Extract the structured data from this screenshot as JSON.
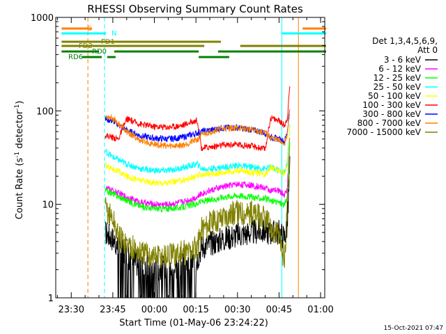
{
  "chart_data": {
    "type": "line",
    "title": "RHESSI Observing Summary Count Rates",
    "xlabel": "Start Time (01-May-06 23:24:22)",
    "ylabel": "Count Rate (s",
    "ylabel_sup1": "-1",
    "ylabel_mid": " detector",
    "ylabel_sup2": "-1",
    "ylabel_end": ")",
    "y_scale": "log",
    "ylim": [
      1,
      1000
    ],
    "xlim_minutes_from_2330": [
      -5.6,
      91.5
    ],
    "x_ticks": [
      {
        "label": "23:30",
        "minute": 0
      },
      {
        "label": "23:45",
        "minute": 15
      },
      {
        "label": "00:00",
        "minute": 30
      },
      {
        "label": "00:15",
        "minute": 45
      },
      {
        "label": "00:30",
        "minute": 60
      },
      {
        "label": "00:45",
        "minute": 75
      },
      {
        "label": "01:00",
        "minute": 90
      }
    ],
    "y_ticks": [
      {
        "label": "1",
        "value": 1
      },
      {
        "label": "10",
        "value": 10
      },
      {
        "label": "100",
        "value": 100
      },
      {
        "label": "1000",
        "value": 1000
      }
    ],
    "legend_header": [
      "Det 1,3,4,5,6,9,",
      "Att 0"
    ],
    "legend_placement": "right",
    "series": [
      {
        "name": "3 - 6 keV",
        "color": "#000000",
        "x": [
          12.3,
          15,
          20,
          25,
          30,
          35,
          40,
          45.5,
          47,
          50,
          55,
          60,
          65,
          70,
          72,
          75,
          77,
          78,
          79
        ],
        "y": [
          5,
          4.3,
          2.8,
          2.2,
          2.1,
          2.1,
          2.2,
          2.6,
          3.5,
          3.8,
          4.3,
          4.7,
          5,
          5.2,
          5,
          5,
          4.5,
          6,
          30
        ]
      },
      {
        "name": "6 - 12 keV",
        "color": "#ff00ff",
        "x": [
          12.3,
          15,
          20,
          25,
          30,
          35,
          40,
          45.5,
          47,
          50,
          55,
          60,
          65,
          70,
          72,
          75,
          77,
          78,
          79
        ],
        "y": [
          15,
          14,
          12,
          10.5,
          10,
          10,
          10.6,
          12,
          13,
          14,
          15.5,
          16.5,
          16,
          15,
          14,
          14,
          12.5,
          15,
          60
        ]
      },
      {
        "name": "12 - 25 keV",
        "color": "#00ff00",
        "x": [
          12.3,
          15,
          20,
          25,
          30,
          35,
          40,
          45.5,
          47,
          50,
          55,
          60,
          65,
          70,
          72,
          75,
          77,
          78,
          79
        ],
        "y": [
          14,
          13,
          11,
          9.5,
          9,
          9,
          9.3,
          10.2,
          10.8,
          11,
          12,
          12.5,
          12,
          11.5,
          10.8,
          10.5,
          9.8,
          12,
          50
        ]
      },
      {
        "name": "25 - 50 keV",
        "color": "#00ffff",
        "x": [
          12.3,
          15,
          20,
          25,
          30,
          35,
          40,
          45.5,
          47,
          50,
          55,
          60,
          65,
          70,
          72,
          75,
          77,
          78,
          79
        ],
        "y": [
          37,
          32,
          27,
          24,
          23,
          23,
          24.5,
          27,
          24,
          24,
          25,
          26,
          25,
          24,
          25,
          23,
          22,
          28,
          80
        ]
      },
      {
        "name": "50 - 100 keV",
        "color": "#ffff00",
        "x": [
          12.3,
          15,
          20,
          25,
          30,
          35,
          40,
          45.5,
          47,
          50,
          55,
          60,
          65,
          70,
          72,
          75,
          77,
          78,
          79
        ],
        "y": [
          26,
          24,
          20,
          18,
          17,
          17,
          18,
          20,
          21,
          21,
          22,
          23,
          22,
          21,
          25,
          23,
          21,
          26,
          70
        ]
      },
      {
        "name": "100 - 300 keV",
        "color": "#ff0000",
        "x": [
          12.3,
          15,
          17,
          20,
          25,
          30,
          35,
          40,
          45.5,
          47,
          50,
          55,
          60,
          65,
          70,
          72,
          75,
          77,
          78,
          79
        ],
        "y": [
          55,
          52,
          50,
          82,
          72,
          68,
          67,
          70,
          80,
          40,
          41,
          43,
          44,
          42,
          39,
          85,
          78,
          70,
          85,
          200
        ]
      },
      {
        "name": "300 - 800 keV",
        "color": "#0000ff",
        "x": [
          12.3,
          15,
          20,
          25,
          30,
          35,
          40,
          45.5,
          47,
          50,
          55,
          60,
          65,
          70,
          72,
          75,
          77,
          78,
          79
        ],
        "y": [
          82,
          78,
          62,
          54,
          51,
          50,
          52,
          58,
          60,
          62,
          66,
          66,
          63,
          58,
          52,
          50,
          47,
          60,
          120
        ]
      },
      {
        "name": "800 - 7000 keV",
        "color": "#ff7f00",
        "x": [
          12.3,
          15,
          20,
          25,
          30,
          35,
          40,
          45.5,
          47,
          50,
          55,
          60,
          65,
          70,
          72,
          75,
          77,
          78,
          79
        ],
        "y": [
          88,
          84,
          60,
          48,
          44,
          42,
          43,
          49,
          55,
          60,
          65,
          66,
          63,
          58,
          52,
          48,
          45,
          55,
          110
        ]
      },
      {
        "name": "7000 - 15000 keV",
        "color": "#808000",
        "x": [
          12.3,
          15,
          17,
          20,
          25,
          30,
          35,
          40,
          45.5,
          47,
          50,
          55,
          60,
          65,
          70,
          72,
          75,
          77,
          78,
          79
        ],
        "y": [
          9,
          7,
          4.5,
          3.8,
          3,
          2.8,
          2.8,
          3,
          3.4,
          5.5,
          6.2,
          7.5,
          8.2,
          8,
          7,
          5.5,
          4.5,
          2.5,
          10,
          40
        ]
      }
    ],
    "flag_bars": [
      {
        "label": "S",
        "color": "#ff7f00",
        "segments": [
          [
            -3.5,
            7.5
          ],
          [
            83.5,
            92
          ]
        ]
      },
      {
        "label": "N",
        "color": "#00ffff",
        "segments": [
          [
            -3.5,
            12.5
          ],
          [
            76,
            92
          ]
        ]
      },
      {
        "label": "FD1",
        "color": "#808000",
        "segments": [
          [
            -3.5,
            54
          ]
        ]
      },
      {
        "label": "FD2",
        "color": "#808000",
        "segments": [
          [
            -3.5,
            48
          ],
          [
            61,
            92
          ]
        ]
      },
      {
        "label": "RD0",
        "color": "#008000",
        "segments": [
          [
            -3.5,
            10
          ],
          [
            15.5,
            46
          ],
          [
            53,
            92
          ]
        ]
      },
      {
        "label": "RD6",
        "color": "#008000",
        "segments": [
          [
            4,
            11
          ],
          [
            13,
            16
          ],
          [
            46,
            57
          ]
        ]
      }
    ],
    "vertical_markers": [
      {
        "minute": -5.6,
        "color": "#00ffff",
        "style": "solid"
      },
      {
        "minute": 6.0,
        "color": "#ff7f00",
        "style": "dashed"
      },
      {
        "minute": 12.0,
        "color": "#00ffff",
        "style": "dashed"
      },
      {
        "minute": 76.0,
        "color": "#00ffff",
        "style": "solid"
      },
      {
        "minute": 82.0,
        "color": "#ff7f00",
        "style": "solid"
      },
      {
        "minute": 91.5,
        "color": "#00ffff",
        "style": "dashed"
      },
      {
        "minute": 91.5,
        "color": "#ff7f00",
        "style": "dashed"
      }
    ],
    "timestamp": "15-Oct-2021 07:47"
  }
}
